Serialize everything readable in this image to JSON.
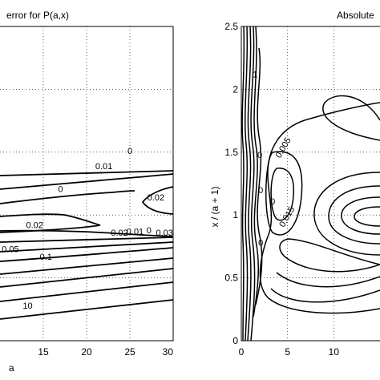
{
  "chart_data": [
    {
      "type": "contour",
      "title": "error for P(a,x)",
      "xlabel": "a",
      "ylabel": "",
      "xlim": [
        10,
        30
      ],
      "ylim": [
        0,
        2.5
      ],
      "grid": true,
      "xticks": [
        15,
        20,
        25,
        30
      ],
      "yticks": [],
      "contour_labels": [
        {
          "text": "0",
          "x": 25.0,
          "y": 1.51
        },
        {
          "text": "0.01",
          "x": 22.0,
          "y": 1.39
        },
        {
          "text": "0",
          "x": 17.0,
          "y": 1.21
        },
        {
          "text": "0.02",
          "x": 28.0,
          "y": 1.14
        },
        {
          "text": "0.02",
          "x": 14.0,
          "y": 0.92
        },
        {
          "text": "0.02",
          "x": 23.8,
          "y": 0.86
        },
        {
          "text": "0.01",
          "x": 25.6,
          "y": 0.87
        },
        {
          "text": "0",
          "x": 27.2,
          "y": 0.88
        },
        {
          "text": "0.03",
          "x": 29.0,
          "y": 0.86
        },
        {
          "text": "0.05",
          "x": 11.2,
          "y": 0.73
        },
        {
          "text": "0.1",
          "x": 15.3,
          "y": 0.67
        },
        {
          "text": "10",
          "x": 13.2,
          "y": 0.28
        }
      ]
    },
    {
      "type": "contour",
      "title": "Absolute",
      "xlabel": "",
      "ylabel": "x / (a + 1)",
      "xlim": [
        0,
        15
      ],
      "ylim": [
        0,
        2.5
      ],
      "grid": true,
      "xticks": [
        0,
        5,
        10
      ],
      "yticks": [
        0,
        0.5,
        1,
        1.5,
        2,
        2.5
      ],
      "contour_labels": [
        {
          "text": "1",
          "x": 1.5,
          "y": 2.12
        },
        {
          "text": "0.005",
          "x": 4.8,
          "y": 1.55
        },
        {
          "text": "0",
          "x": 2.0,
          "y": 1.48
        },
        {
          "text": "0.015",
          "x": 5.2,
          "y": 1.0
        },
        {
          "text": "0",
          "x": 3.4,
          "y": 1.11
        },
        {
          "text": "0",
          "x": 2.1,
          "y": 1.2
        },
        {
          "text": "0",
          "x": 2.1,
          "y": 0.78
        }
      ]
    }
  ]
}
